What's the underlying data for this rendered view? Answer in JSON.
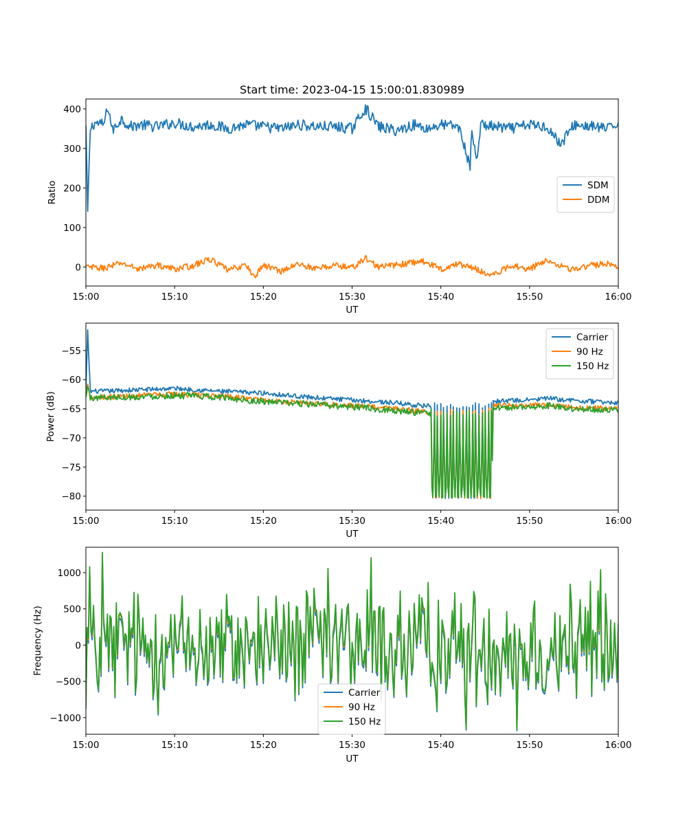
{
  "figure": {
    "title": "Start time: 2023-04-15 15:00:01.830989"
  },
  "chart_data": [
    {
      "type": "line",
      "xlabel": "UT",
      "ylabel": "Ratio",
      "x_range": [
        "15:00",
        "16:00"
      ],
      "ylim": [
        -48,
        425
      ],
      "x_ticks": [
        "15:00",
        "15:10",
        "15:20",
        "15:30",
        "15:40",
        "15:50",
        "16:00"
      ],
      "y_ticks": [
        0,
        100,
        200,
        300,
        400
      ],
      "y_tick_labels": [
        "0",
        "100",
        "200",
        "300",
        "400"
      ],
      "legend": "center-right",
      "series": [
        {
          "name": "SDM",
          "color": "#1f77b4",
          "x_minutes": [
            0,
            0.2,
            0.5,
            1,
            2,
            2.5,
            3,
            4,
            5,
            6,
            8,
            10,
            12,
            14,
            16,
            18,
            20,
            22,
            24,
            26,
            28,
            30,
            31.5,
            33,
            35,
            37,
            38.5,
            40,
            42,
            43.3,
            43.5,
            44,
            44.5,
            46,
            48,
            50,
            52,
            53.5,
            55,
            57,
            59,
            60
          ],
          "values": [
            355,
            140,
            350,
            365,
            360,
            405,
            345,
            375,
            355,
            360,
            355,
            365,
            355,
            360,
            350,
            360,
            355,
            350,
            360,
            355,
            355,
            350,
            402,
            355,
            345,
            360,
            350,
            360,
            355,
            255,
            350,
            265,
            360,
            355,
            350,
            360,
            355,
            310,
            360,
            355,
            350,
            365
          ],
          "noise_amplitude": 14
        },
        {
          "name": "DDM",
          "color": "#ff7f0e",
          "x_minutes": [
            0,
            2,
            4,
            6,
            8,
            10,
            12,
            14,
            16,
            18,
            19,
            20,
            22,
            24,
            26,
            28,
            30,
            31.5,
            33,
            35,
            38,
            40,
            42,
            44,
            45.8,
            48,
            50,
            52,
            55,
            57,
            59,
            60
          ],
          "values": [
            0,
            -3,
            10,
            -5,
            5,
            -5,
            3,
            20,
            -8,
            5,
            -25,
            5,
            -10,
            8,
            -5,
            5,
            -2,
            22,
            0,
            5,
            15,
            -5,
            8,
            -5,
            -22,
            5,
            -5,
            18,
            -8,
            5,
            8,
            0
          ],
          "noise_amplitude": 8
        }
      ]
    },
    {
      "type": "line",
      "xlabel": "UT",
      "ylabel": "Power (dB)",
      "x_range": [
        "15:00",
        "16:00"
      ],
      "ylim": [
        -82.4,
        -50.3
      ],
      "x_ticks": [
        "15:00",
        "15:10",
        "15:20",
        "15:30",
        "15:40",
        "15:50",
        "16:00"
      ],
      "y_ticks": [
        -55,
        -60,
        -65,
        -70,
        -75,
        -80
      ],
      "y_tick_labels": [
        "−55",
        "−60",
        "−65",
        "−70",
        "−75",
        "−80"
      ],
      "legend": "top-right",
      "dropout": {
        "start_minutes": 38.9,
        "end_minutes": 45.8,
        "floor": -80.2
      },
      "series": [
        {
          "name": "Carrier",
          "color": "#1f77b4",
          "x_minutes": [
            0,
            0.2,
            0.5,
            2,
            5,
            10,
            15,
            20,
            25,
            30,
            35,
            38,
            40,
            45,
            46,
            50,
            52,
            55,
            60
          ],
          "values": [
            -62,
            -51.8,
            -62,
            -62,
            -61.8,
            -61.5,
            -62,
            -62.3,
            -63,
            -63.5,
            -64,
            -64.5,
            -64.5,
            -64.5,
            -63.7,
            -63.5,
            -63.2,
            -63.6,
            -64
          ],
          "noise_amplitude": 0.4
        },
        {
          "name": "90 Hz",
          "color": "#ff7f0e",
          "x_minutes": [
            0,
            0.2,
            0.5,
            2,
            5,
            10,
            15,
            20,
            25,
            30,
            35,
            38,
            40,
            45,
            46,
            50,
            52,
            55,
            60
          ],
          "values": [
            -63,
            -60.5,
            -63,
            -63,
            -62.8,
            -62.5,
            -62.8,
            -63.5,
            -64,
            -64.5,
            -65,
            -65.5,
            -65.5,
            -65.5,
            -64.5,
            -64.5,
            -64.2,
            -64.8,
            -65
          ],
          "noise_amplitude": 0.45
        },
        {
          "name": "150 Hz",
          "color": "#2ca02c",
          "x_minutes": [
            0,
            0.2,
            0.5,
            2,
            5,
            10,
            15,
            20,
            25,
            30,
            35,
            38,
            40,
            45,
            46,
            50,
            52,
            55,
            60
          ],
          "values": [
            -63.2,
            -61,
            -63.2,
            -63,
            -63,
            -62.7,
            -63,
            -63.8,
            -64.2,
            -64.7,
            -65.3,
            -65.8,
            -65.8,
            -65.7,
            -64.8,
            -64.7,
            -64.5,
            -65,
            -65.2
          ],
          "noise_amplitude": 0.55
        }
      ]
    },
    {
      "type": "line",
      "xlabel": "UT",
      "ylabel": "Frequency (Hz)",
      "x_range": [
        "15:00",
        "16:00"
      ],
      "ylim": [
        -1230,
        1350
      ],
      "x_ticks": [
        "15:00",
        "15:10",
        "15:20",
        "15:30",
        "15:40",
        "15:50",
        "16:00"
      ],
      "y_ticks": [
        1000,
        500,
        0,
        -500,
        -1000
      ],
      "y_tick_labels": [
        "1000",
        "500",
        "0",
        "−500",
        "−1000"
      ],
      "legend": "lower-center",
      "series": [
        {
          "name": "Carrier",
          "color": "#1f77b4",
          "offset": -60,
          "noise_amplitude": 1100
        },
        {
          "name": "90 Hz",
          "color": "#ff7f0e",
          "offset": -25,
          "noise_amplitude": 1100
        },
        {
          "name": "150 Hz",
          "color": "#2ca02c",
          "offset": 0,
          "noise_amplitude": 1100
        }
      ]
    }
  ]
}
